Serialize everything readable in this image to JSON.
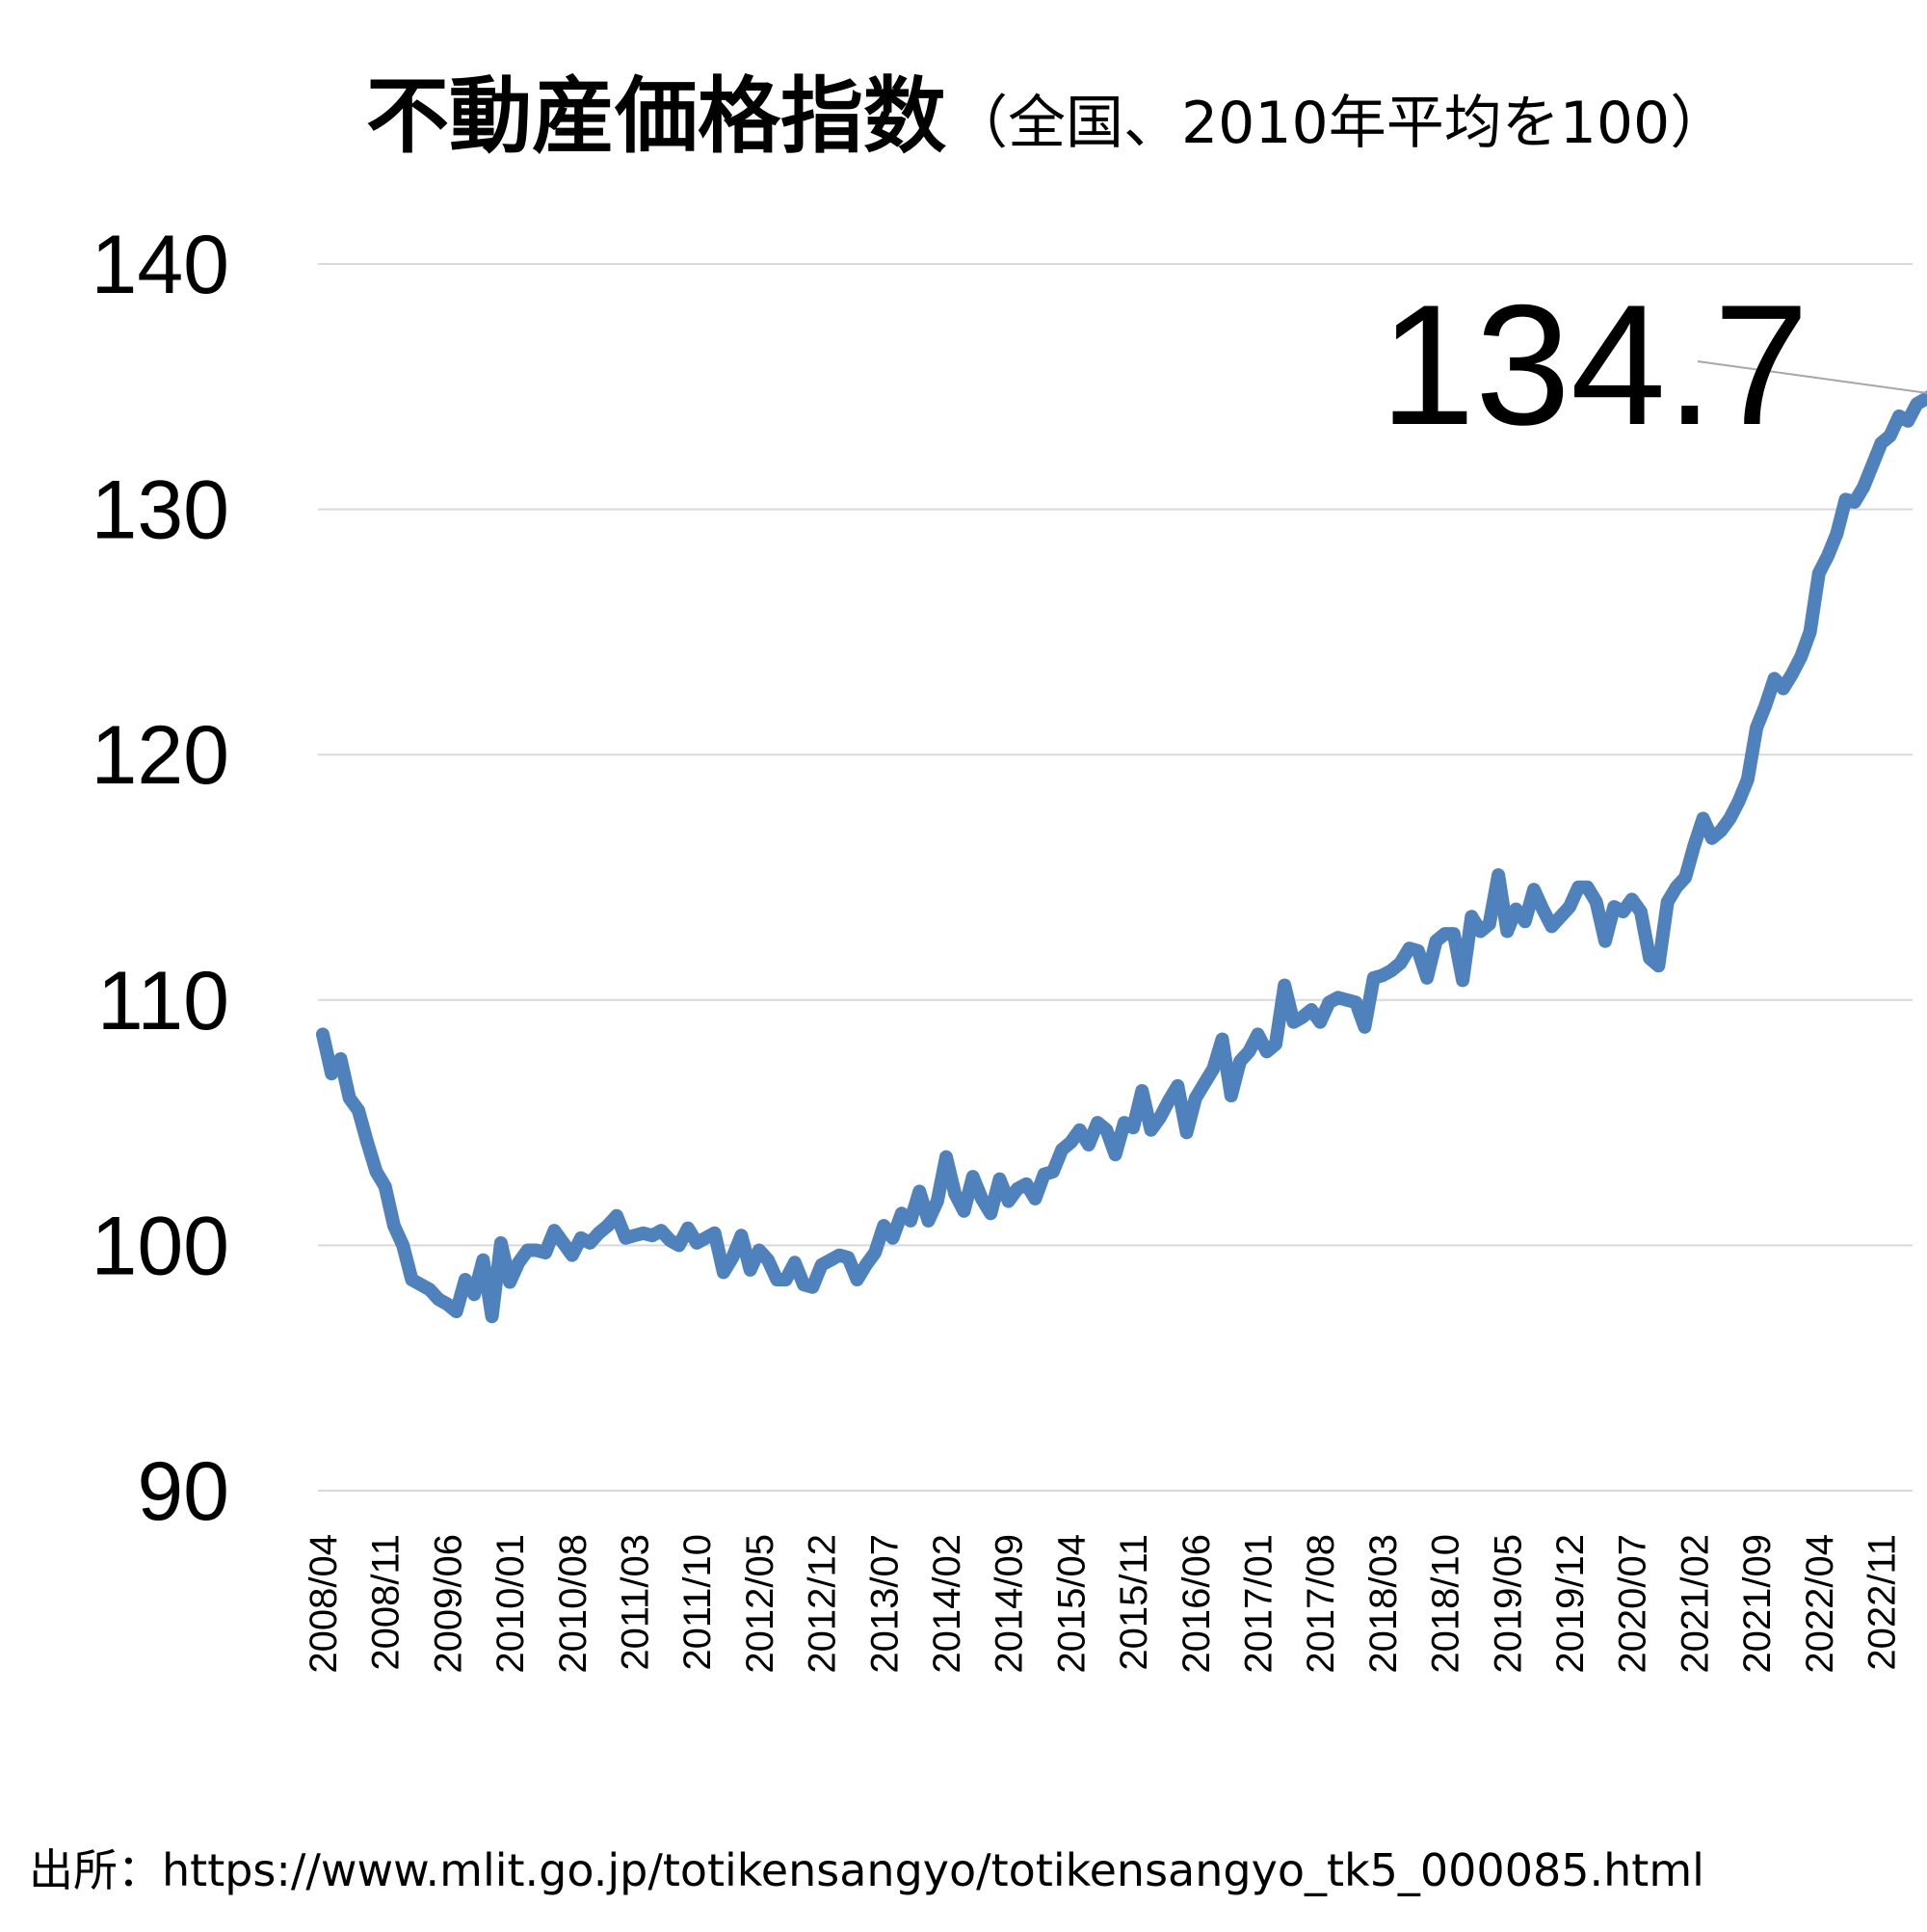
{
  "chart_data": {
    "type": "line",
    "title": "不動産価格指数",
    "subtitle": "（全国、2010年平均を100）",
    "xlabel": "",
    "ylabel": "",
    "ylim": [
      90,
      140
    ],
    "yticks": [
      90,
      100,
      110,
      120,
      130,
      140
    ],
    "grid": "horizontal",
    "legend": "none",
    "line_color": "#4f81bd",
    "callout": {
      "text": "134.7",
      "x": "2023/03",
      "y": 134.7
    },
    "xticks": [
      "2008/04",
      "2008/11",
      "2009/06",
      "2010/01",
      "2010/08",
      "2011/03",
      "2011/10",
      "2012/05",
      "2012/12",
      "2013/07",
      "2014/02",
      "2014/09",
      "2015/04",
      "2015/11",
      "2016/06",
      "2017/01",
      "2017/08",
      "2018/03",
      "2018/10",
      "2019/05",
      "2019/12",
      "2020/07",
      "2021/02",
      "2021/09",
      "2022/04",
      "2022/11"
    ],
    "series": [
      {
        "values": [
          108.6,
          107.0,
          107.6,
          106.0,
          105.5,
          104.2,
          103.0,
          102.4,
          100.8,
          100.0,
          98.6,
          98.4,
          98.2,
          97.8,
          97.6,
          97.3,
          98.6,
          98.0,
          99.4,
          97.1,
          100.1,
          98.5,
          99.3,
          99.8,
          99.8,
          99.7,
          100.6,
          100.1,
          99.6,
          100.3,
          100.1,
          100.5,
          100.8,
          101.2,
          100.3,
          100.4,
          100.5,
          100.4,
          100.6,
          100.2,
          100.0,
          100.7,
          100.1,
          100.3,
          100.5,
          98.9,
          99.5,
          100.4,
          99.0,
          99.8,
          99.4,
          98.6,
          98.6,
          99.3,
          98.4,
          98.3,
          99.2,
          99.4,
          99.6,
          99.5,
          98.6,
          99.2,
          99.7,
          100.8,
          100.3,
          101.3,
          101.0,
          102.2,
          101.0,
          101.8,
          103.6,
          102.1,
          101.4,
          102.8,
          101.9,
          101.3,
          102.7,
          101.8,
          102.3,
          102.5,
          101.9,
          102.9,
          103.0,
          103.9,
          104.2,
          104.7,
          104.1,
          105.0,
          104.7,
          103.7,
          105.0,
          104.8,
          106.3,
          104.7,
          105.2,
          105.9,
          106.5,
          104.6,
          106.0,
          106.6,
          107.2,
          108.4,
          106.1,
          107.5,
          107.9,
          108.6,
          107.9,
          108.2,
          110.6,
          109.1,
          109.3,
          109.6,
          109.1,
          109.9,
          110.1,
          110.0,
          109.9,
          108.9,
          110.9,
          111.0,
          111.2,
          111.5,
          112.1,
          112.0,
          110.9,
          112.4,
          112.7,
          112.7,
          110.8,
          113.4,
          112.8,
          113.1,
          115.1,
          112.8,
          113.7,
          113.2,
          114.5,
          113.7,
          113.0,
          113.4,
          113.8,
          114.6,
          114.6,
          114.0,
          112.4,
          113.8,
          113.6,
          114.1,
          113.6,
          111.7,
          111.4,
          114.0,
          114.6,
          115.0,
          116.3,
          117.4,
          116.6,
          116.9,
          117.4,
          118.1,
          119.0,
          121.1,
          122.0,
          123.1,
          122.7,
          123.3,
          124.0,
          125.0,
          127.4,
          128.1,
          129.0,
          130.4,
          130.3,
          130.9,
          131.8,
          132.7,
          133.0,
          133.8,
          133.6,
          134.3,
          134.5,
          134.7
        ]
      }
    ]
  },
  "source": "出所：https://www.mlit.go.jp/totikensangyo/totikensangyo_tk5_000085.html"
}
